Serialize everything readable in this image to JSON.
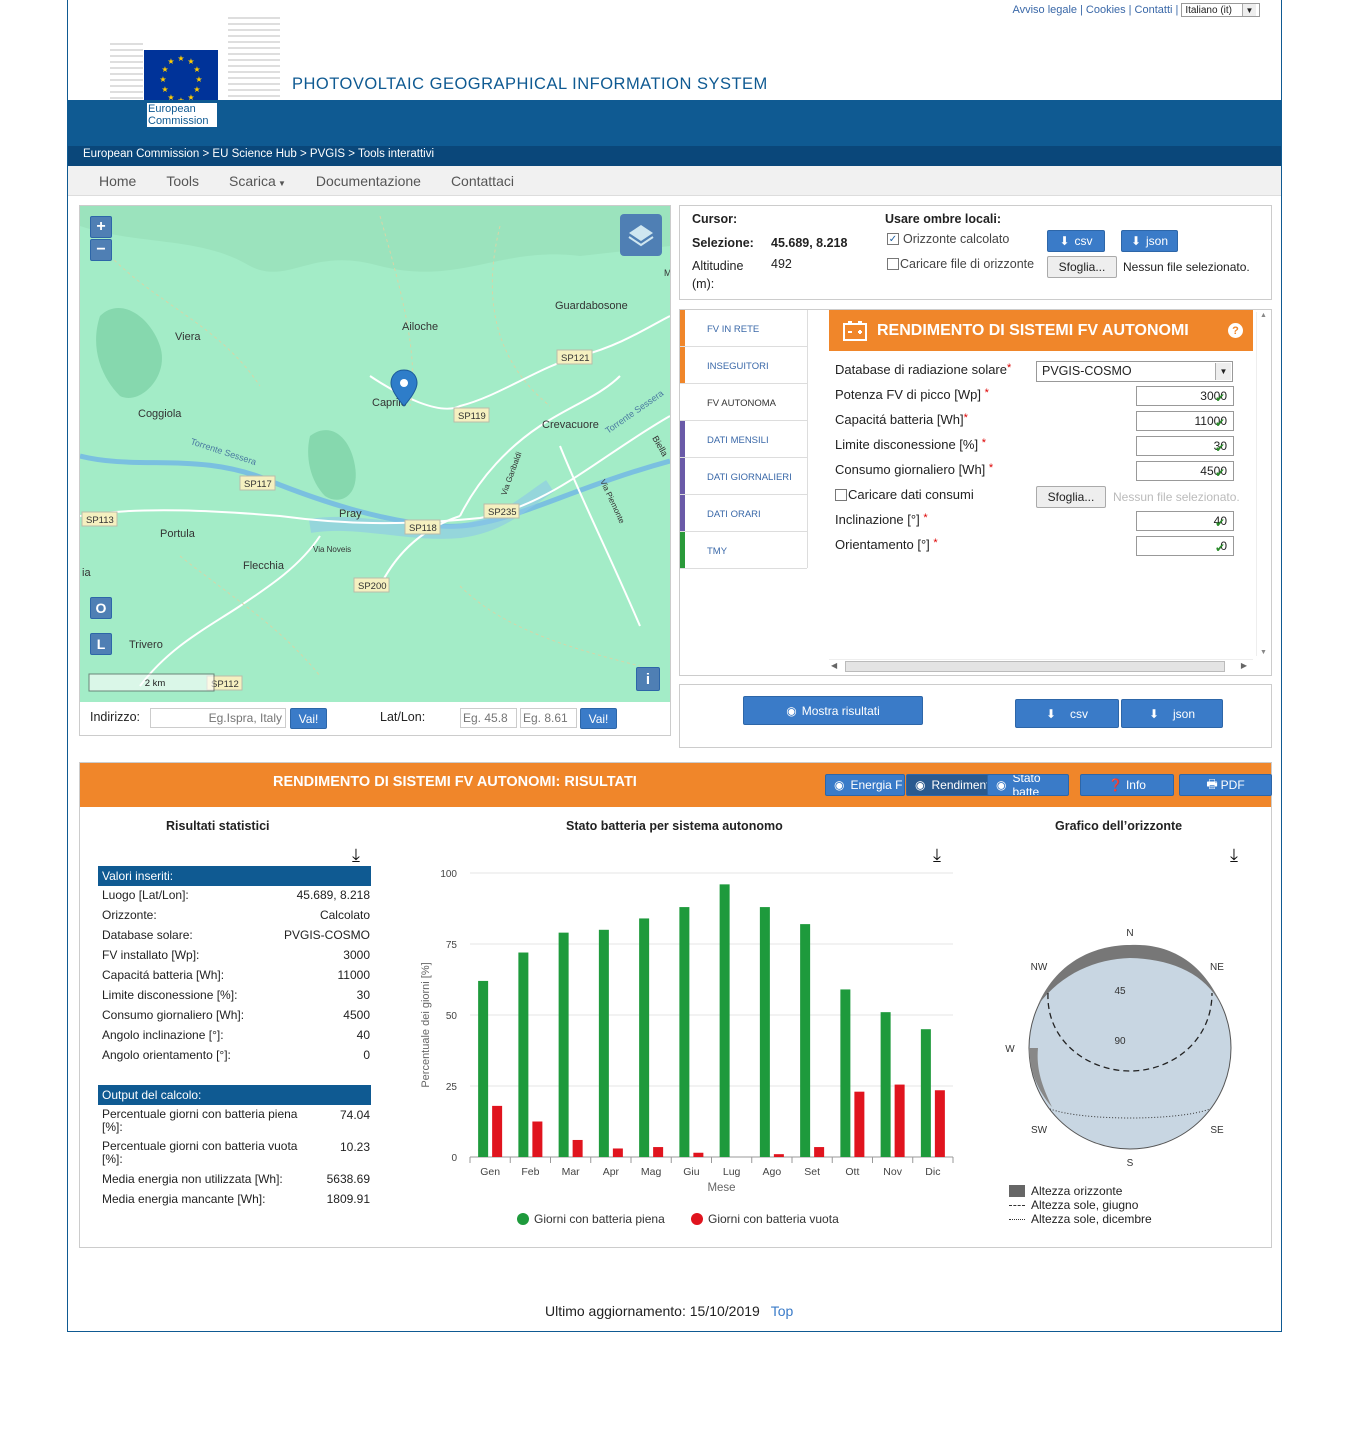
{
  "top_links": {
    "legal": "Avviso legale",
    "cookies": "Cookies",
    "contacts": "Contatti",
    "language": "Italiano (it)"
  },
  "header": {
    "ec_line1": "European",
    "ec_line2": "Commission",
    "title": "PHOTOVOLTAIC GEOGRAPHICAL INFORMATION SYSTEM"
  },
  "breadcrumb": "European Commission > EU Science Hub > PVGIS > Tools interattivi",
  "nav": [
    "Home",
    "Tools",
    "Scarica",
    "Documentazione",
    "Contattaci"
  ],
  "map": {
    "zoom_in": "+",
    "zoom_out": "−",
    "btn_o": "O",
    "btn_l": "L",
    "btn_i": "i",
    "scale": "2 km",
    "places": {
      "viera": "Viera",
      "ailoche": "Ailoche",
      "guardabosone": "Guardabosone",
      "caprile": "Caprile",
      "coggiola": "Coggiola",
      "crevacuore": "Crevacuore",
      "pray": "Pray",
      "portula": "Portula",
      "flecchia": "Flecchia",
      "trivero": "Trivero",
      "torrente": "Torrente Sessera",
      "torrente2": "Torrente Sessera",
      "via_noveis": "Via Noveis",
      "via_garibaldi": "Via Garibaldi",
      "via_piemonte": "Via Piemonte",
      "biella": "Biella",
      "ia": "ia",
      "m": "M"
    },
    "roads": {
      "sp121": "SP121",
      "sp119": "SP119",
      "sp117": "SP117",
      "sp118": "SP118",
      "sp235": "SP235",
      "sp113": "SP113",
      "sp200": "SP200",
      "sp112": "SP112"
    }
  },
  "address": {
    "label": "Indirizzo:",
    "placeholder": "Eg.Ispra, Italy",
    "go": "Vai!",
    "latlon_label": "Lat/Lon:",
    "lat_placeholder": "Eg. 45.8",
    "lon_placeholder": "Eg. 8.61",
    "go2": "Vai!"
  },
  "cursor_panel": {
    "cursor_label": "Cursor:",
    "selection_label": "Selezione:",
    "selection_value": "45.689, 8.218",
    "altitude_label": "Altitudine",
    "altitude_unit": "(m):",
    "altitude_value": "492",
    "shadows_label": "Usare ombre locali:",
    "horizon_calc": "Orizzonte calcolato",
    "horizon_file": "Caricare file di orizzonte",
    "csv": "csv",
    "json": "json",
    "browse": "Sfoglia...",
    "no_file": "Nessun file selezionato."
  },
  "tabs": [
    "FV IN RETE",
    "INSEGUITORI",
    "FV AUTONOMA",
    "DATI MENSILI",
    "DATI GIORNALIERI",
    "DATI ORARI",
    "TMY"
  ],
  "tab_colors": [
    "#f0862a",
    "#f0862a",
    "#ffffff",
    "#6a5aa8",
    "#6a5aa8",
    "#6a5aa8",
    "#2a9a3a"
  ],
  "form": {
    "title": "RENDIMENTO DI SISTEMI FV AUTONOMI",
    "help": "?",
    "db_label": "Database di radiazione solare",
    "db_value": "PVGIS-COSMO",
    "peak_label": "Potenza FV di picco [Wp]",
    "peak_value": "3000",
    "battery_label": "Capacitá batteria [Wh]",
    "battery_value": "11000",
    "cutoff_label": "Limite disconessione [%]",
    "cutoff_value": "30",
    "consumption_label": "Consumo giornaliero [Wh]",
    "consumption_value": "4500",
    "upload_label": "Caricare dati consumi",
    "browse": "Sfoglia...",
    "no_file": "Nessun file selezionato.",
    "slope_label": "Inclinazione [°]",
    "slope_value": "40",
    "azimuth_label": "Orientamento [°]",
    "azimuth_value": "0"
  },
  "actions": {
    "show": "Mostra risultati",
    "csv": "csv",
    "json": "json"
  },
  "results": {
    "title": "RENDIMENTO DI SISTEMI FV AUTONOMI: RISULTATI",
    "btn_energy": "Energia F",
    "btn_perf": "Rendiment",
    "btn_batt": "Stato batte",
    "btn_info": "Info",
    "btn_pdf": "PDF",
    "stats_title": "Risultati statistici",
    "inputs_head": "Valori inseriti:",
    "inputs": [
      {
        "k": "Luogo [Lat/Lon]:",
        "v": "45.689, 8.218"
      },
      {
        "k": "Orizzonte:",
        "v": "Calcolato"
      },
      {
        "k": "Database solare:",
        "v": "PVGIS-COSMO"
      },
      {
        "k": "FV installato [Wp]:",
        "v": "3000"
      },
      {
        "k": "Capacitá batteria [Wh]:",
        "v": "11000"
      },
      {
        "k": "Limite disconessione [%]:",
        "v": "30"
      },
      {
        "k": "Consumo giornaliero [Wh]:",
        "v": "4500"
      },
      {
        "k": "Angolo inclinazione [°]:",
        "v": "40"
      },
      {
        "k": "Angolo orientamento [°]:",
        "v": "0"
      }
    ],
    "outputs_head": "Output del calcolo:",
    "outputs": [
      {
        "k": "Percentuale giorni con batteria piena [%]:",
        "v": "74.04"
      },
      {
        "k": "Percentuale giorni con batteria vuota [%]:",
        "v": "10.23"
      },
      {
        "k": "Media energia non utilizzata [Wh]:",
        "v": "5638.69"
      },
      {
        "k": "Media energia mancante [Wh]:",
        "v": "1809.91"
      }
    ],
    "chart_title": "Stato batteria per sistema autonomo",
    "horizon_title": "Grafico dell’orizzonte",
    "horizon_labels": {
      "n": "N",
      "ne": "NE",
      "e": "E",
      "se": "SE",
      "s": "S",
      "sw": "SW",
      "w": "W",
      "nw": "NW",
      "e45": "45",
      "e90": "90"
    },
    "horizon_legend": [
      "Altezza orizzonte",
      "Altezza sole, giugno",
      "Altezza sole, dicembre"
    ]
  },
  "chart_data": {
    "type": "bar",
    "title": "Stato batteria per sistema autonomo",
    "xlabel": "Mese",
    "ylabel": "Percentuale dei giorni [%]",
    "ylim": [
      0,
      100
    ],
    "yticks": [
      "0",
      "25",
      "50",
      "75",
      "100"
    ],
    "categories": [
      "Gen",
      "Feb",
      "Mar",
      "Apr",
      "Mag",
      "Giu",
      "Lug",
      "Ago",
      "Set",
      "Ott",
      "Nov",
      "Dic"
    ],
    "series": [
      {
        "name": "Giorni con batteria piena",
        "color": "#1e9a3c",
        "values": [
          62,
          72,
          79,
          80,
          84,
          88,
          96,
          88,
          82,
          59,
          51,
          45
        ]
      },
      {
        "name": "Giorni con batteria vuota",
        "color": "#e0141e",
        "values": [
          18,
          12.5,
          6,
          3,
          3.5,
          1.5,
          0,
          1,
          3.5,
          23,
          25.5,
          23.5
        ]
      }
    ]
  },
  "footer": {
    "updated": "Ultimo aggiornamento: 15/10/2019",
    "top": "Top"
  }
}
